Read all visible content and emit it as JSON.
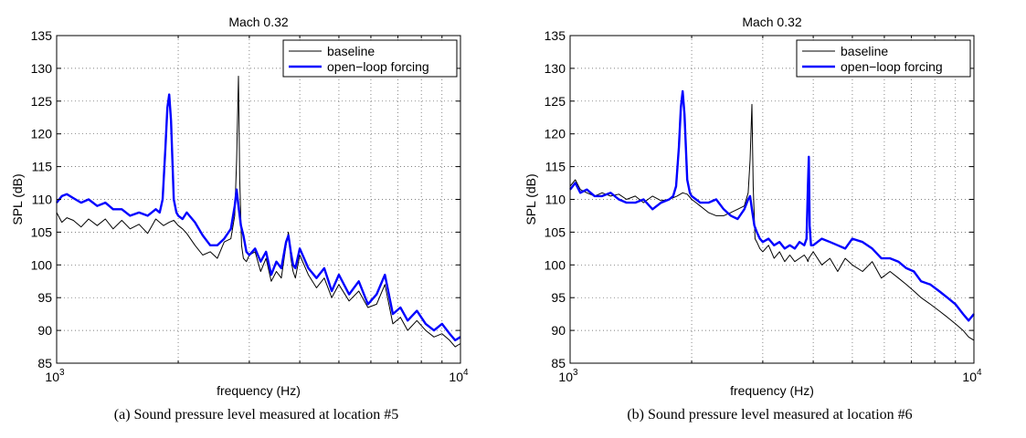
{
  "chart_data": [
    {
      "type": "line",
      "title": "Mach 0.32",
      "xlabel": "frequency  (Hz)",
      "ylabel": "SPL  (dB)",
      "x_scale": "log",
      "xlim": [
        1000,
        10000
      ],
      "ylim": [
        85,
        135
      ],
      "x_ticks": [
        {
          "value": 1000,
          "base": "10",
          "exp": "3"
        },
        {
          "value": 10000,
          "base": "10",
          "exp": "4"
        }
      ],
      "y_ticks": [
        "85",
        "90",
        "95",
        "100",
        "105",
        "110",
        "115",
        "120",
        "125",
        "130",
        "135"
      ],
      "grid": true,
      "legend_position": "top-right",
      "caption": "(a) Sound pressure level measured at location #5",
      "series": [
        {
          "name": "baseline",
          "color": "#000000",
          "x": [
            1000,
            1030,
            1060,
            1100,
            1150,
            1200,
            1260,
            1320,
            1380,
            1450,
            1520,
            1600,
            1680,
            1760,
            1840,
            1900,
            1950,
            2000,
            2050,
            2100,
            2200,
            2300,
            2400,
            2500,
            2600,
            2700,
            2760,
            2790,
            2820,
            2840,
            2870,
            2900,
            2950,
            3000,
            3100,
            3200,
            3300,
            3400,
            3500,
            3600,
            3700,
            3750,
            3800,
            3850,
            3900,
            4000,
            4200,
            4400,
            4600,
            4800,
            5000,
            5300,
            5600,
            5900,
            6200,
            6500,
            6800,
            7100,
            7400,
            7800,
            8200,
            8600,
            9000,
            9400,
            9700,
            10000
          ],
          "y": [
            108.0,
            106.5,
            107.2,
            106.8,
            105.8,
            107.0,
            106.0,
            107.0,
            105.5,
            106.8,
            105.5,
            106.2,
            104.8,
            107.0,
            106.0,
            106.5,
            106.8,
            106.0,
            105.5,
            104.8,
            103.0,
            101.5,
            102.0,
            101.0,
            103.5,
            104.0,
            107.5,
            116.0,
            128.8,
            113.0,
            103.0,
            101.0,
            100.5,
            101.5,
            102.0,
            99.0,
            101.0,
            97.5,
            99.0,
            98.0,
            103.0,
            105.0,
            101.0,
            99.0,
            98.0,
            101.5,
            98.5,
            96.5,
            98.0,
            95.0,
            97.0,
            94.5,
            96.0,
            93.5,
            94.0,
            97.0,
            91.0,
            92.0,
            90.0,
            91.5,
            90.0,
            89.0,
            89.5,
            88.5,
            87.5,
            88.0
          ]
        },
        {
          "name": "open−loop forcing",
          "color": "#0000ff",
          "x": [
            1000,
            1030,
            1060,
            1100,
            1150,
            1200,
            1260,
            1320,
            1380,
            1450,
            1520,
            1600,
            1680,
            1760,
            1800,
            1830,
            1860,
            1880,
            1900,
            1920,
            1950,
            1980,
            2000,
            2050,
            2100,
            2200,
            2300,
            2400,
            2500,
            2600,
            2700,
            2760,
            2790,
            2820,
            2860,
            2900,
            2950,
            3000,
            3100,
            3200,
            3300,
            3400,
            3500,
            3600,
            3700,
            3750,
            3800,
            3850,
            3900,
            4000,
            4200,
            4400,
            4600,
            4800,
            5000,
            5300,
            5600,
            5900,
            6200,
            6500,
            6800,
            7100,
            7400,
            7800,
            8200,
            8600,
            9000,
            9400,
            9700,
            10000
          ],
          "y": [
            109.5,
            110.5,
            110.8,
            110.2,
            109.5,
            110.0,
            109.0,
            109.5,
            108.5,
            108.5,
            107.5,
            108.0,
            107.5,
            108.5,
            108.0,
            110.0,
            118.0,
            124.0,
            126.0,
            122.0,
            110.0,
            108.0,
            107.5,
            107.0,
            108.0,
            106.5,
            104.5,
            103.0,
            103.0,
            104.0,
            105.5,
            109.0,
            111.5,
            109.0,
            106.0,
            104.5,
            102.0,
            101.5,
            102.5,
            100.5,
            102.0,
            98.5,
            100.5,
            99.5,
            103.5,
            104.5,
            102.0,
            100.0,
            99.5,
            102.5,
            99.5,
            98.0,
            99.5,
            96.0,
            98.5,
            95.5,
            97.5,
            94.0,
            95.5,
            98.5,
            92.5,
            93.5,
            91.5,
            93.0,
            91.0,
            90.0,
            91.0,
            89.5,
            88.5,
            89.0
          ]
        }
      ]
    },
    {
      "type": "line",
      "title": "Mach 0.32",
      "xlabel": "frequency  (Hz)",
      "ylabel": "SPL  (dB)",
      "x_scale": "log",
      "xlim": [
        1000,
        10000
      ],
      "ylim": [
        85,
        135
      ],
      "x_ticks": [
        {
          "value": 1000,
          "base": "10",
          "exp": "3"
        },
        {
          "value": 10000,
          "base": "10",
          "exp": "4"
        }
      ],
      "y_ticks": [
        "85",
        "90",
        "95",
        "100",
        "105",
        "110",
        "115",
        "120",
        "125",
        "130",
        "135"
      ],
      "grid": true,
      "legend_position": "top-right",
      "caption": "(b) Sound pressure level measured at location #6",
      "series": [
        {
          "name": "baseline",
          "color": "#000000",
          "x": [
            1000,
            1030,
            1060,
            1100,
            1150,
            1200,
            1260,
            1320,
            1380,
            1450,
            1520,
            1600,
            1680,
            1760,
            1840,
            1900,
            1950,
            2000,
            2050,
            2100,
            2200,
            2300,
            2400,
            2500,
            2600,
            2700,
            2760,
            2790,
            2820,
            2840,
            2870,
            2900,
            2950,
            3000,
            3100,
            3200,
            3300,
            3400,
            3500,
            3600,
            3700,
            3800,
            3850,
            3880,
            3900,
            3950,
            4000,
            4200,
            4400,
            4600,
            4800,
            5000,
            5300,
            5600,
            5900,
            6200,
            6500,
            6800,
            7100,
            7400,
            7800,
            8200,
            8600,
            9000,
            9400,
            9700,
            10000
          ],
          "y": [
            112.0,
            113.0,
            111.5,
            111.0,
            110.5,
            111.0,
            110.5,
            110.8,
            110.0,
            110.5,
            109.5,
            110.5,
            109.8,
            110.0,
            110.5,
            111.0,
            110.8,
            110.0,
            109.5,
            109.0,
            108.0,
            107.5,
            107.5,
            108.0,
            108.5,
            109.0,
            111.0,
            116.0,
            124.5,
            112.0,
            104.0,
            103.5,
            102.5,
            102.0,
            103.0,
            101.0,
            102.0,
            100.5,
            101.5,
            100.5,
            101.0,
            101.5,
            101.0,
            100.5,
            101.0,
            101.5,
            102.0,
            100.0,
            101.0,
            99.0,
            101.0,
            100.0,
            99.0,
            100.5,
            98.0,
            99.0,
            98.0,
            97.0,
            96.0,
            95.0,
            94.0,
            93.0,
            92.0,
            91.0,
            90.0,
            89.0,
            88.5
          ]
        },
        {
          "name": "open−loop forcing",
          "color": "#0000ff",
          "x": [
            1000,
            1030,
            1060,
            1100,
            1150,
            1200,
            1260,
            1320,
            1380,
            1450,
            1520,
            1600,
            1680,
            1760,
            1800,
            1830,
            1860,
            1880,
            1900,
            1920,
            1950,
            1980,
            2000,
            2050,
            2100,
            2200,
            2300,
            2400,
            2500,
            2600,
            2700,
            2760,
            2790,
            2820,
            2860,
            2900,
            2950,
            3000,
            3100,
            3200,
            3300,
            3400,
            3500,
            3600,
            3700,
            3800,
            3850,
            3880,
            3900,
            3920,
            3950,
            4000,
            4200,
            4400,
            4600,
            4800,
            5000,
            5300,
            5600,
            5900,
            6200,
            6500,
            6800,
            7100,
            7400,
            7800,
            8200,
            8600,
            9000,
            9400,
            9700,
            10000
          ],
          "y": [
            111.5,
            112.5,
            111.0,
            111.5,
            110.5,
            110.5,
            111.0,
            110.0,
            109.5,
            109.5,
            110.0,
            108.5,
            109.5,
            110.0,
            110.5,
            112.0,
            118.0,
            124.0,
            126.5,
            123.0,
            113.0,
            111.0,
            110.5,
            110.0,
            109.5,
            109.5,
            110.0,
            108.5,
            107.5,
            107.0,
            108.5,
            110.0,
            110.5,
            108.5,
            106.0,
            105.0,
            104.0,
            103.5,
            104.0,
            103.0,
            103.5,
            102.5,
            103.0,
            102.5,
            103.5,
            103.0,
            104.0,
            112.0,
            116.5,
            106.0,
            103.0,
            103.0,
            104.0,
            103.5,
            103.0,
            102.5,
            104.0,
            103.5,
            102.5,
            101.0,
            101.0,
            100.5,
            99.5,
            99.0,
            97.5,
            97.0,
            96.0,
            95.0,
            94.0,
            92.5,
            91.5,
            92.5
          ]
        }
      ]
    }
  ]
}
